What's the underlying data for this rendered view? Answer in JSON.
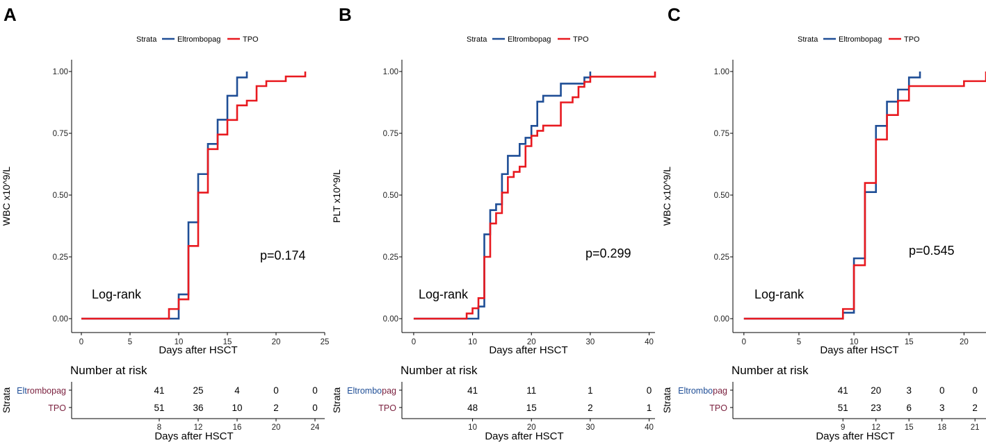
{
  "colors": {
    "eltrombopag": "#1f4e96",
    "tpo": "#e8191f",
    "axis": "#000000"
  },
  "chart_data": [
    {
      "type": "line",
      "step": true,
      "panel_label": "A",
      "legend": {
        "title": "Strata",
        "entries": [
          "Eltrombopag",
          "TPO"
        ],
        "placement": "top"
      },
      "xlabel": "Days after HSCT",
      "ylabel": "WBC x10^9/L",
      "xlim": [
        -1,
        25
      ],
      "ylim": [
        0,
        1
      ],
      "xticks": [
        0,
        5,
        10,
        15,
        20,
        25
      ],
      "yticks": [
        "0.00",
        "0.25",
        "0.50",
        "0.75",
        "1.00"
      ],
      "annotations": {
        "method": "Log-rank",
        "pvalue": "p=0.174"
      },
      "series": [
        {
          "name": "Eltrombopag",
          "x": [
            0,
            10,
            11,
            12,
            13,
            14,
            15,
            16,
            17
          ],
          "y": [
            0,
            0.098,
            0.39,
            0.585,
            0.707,
            0.805,
            0.902,
            0.976,
            1.0
          ]
        },
        {
          "name": "TPO",
          "x": [
            0,
            9,
            10,
            11,
            12,
            13,
            14,
            15,
            16,
            17,
            18,
            19,
            21,
            23
          ],
          "y": [
            0,
            0.039,
            0.078,
            0.294,
            0.51,
            0.686,
            0.745,
            0.804,
            0.863,
            0.882,
            0.941,
            0.961,
            0.98,
            1.0
          ]
        }
      ],
      "risk_table": {
        "title": "Number at risk",
        "strata_label": "Strata",
        "xlabel": "Days after HSCT",
        "xlim": [
          -1,
          25
        ],
        "times": [
          8,
          12,
          16,
          20,
          24
        ],
        "rows": [
          {
            "name": "Elt",
            "name_rest": "rombopag",
            "values": [
              "41",
              "25",
              "4",
              "0",
              "0"
            ]
          },
          {
            "name": "TPO",
            "name_rest": "",
            "values": [
              "51",
              "36",
              "10",
              "2",
              "0"
            ]
          }
        ]
      }
    },
    {
      "type": "line",
      "step": true,
      "panel_label": "B",
      "legend": {
        "title": "Strata",
        "entries": [
          "Eltrombopag",
          "TPO"
        ],
        "placement": "top"
      },
      "xlabel": "Days after HSCT",
      "ylabel": "PLT x10^9/L",
      "xlim": [
        -2,
        41
      ],
      "ylim": [
        0,
        1
      ],
      "xticks": [
        0,
        10,
        20,
        30,
        40
      ],
      "yticks": [
        "0.00",
        "0.25",
        "0.50",
        "0.75",
        "1.00"
      ],
      "annotations": {
        "method": "Log-rank",
        "pvalue": "p=0.299"
      },
      "series": [
        {
          "name": "Eltrombopag",
          "x": [
            0,
            11,
            12,
            13,
            14,
            15,
            16,
            17,
            18,
            19,
            20,
            21,
            22,
            25,
            29,
            30
          ],
          "y": [
            0,
            0.049,
            0.341,
            0.439,
            0.463,
            0.585,
            0.659,
            0.659,
            0.707,
            0.732,
            0.78,
            0.878,
            0.902,
            0.951,
            0.976,
            1.0
          ]
        },
        {
          "name": "TPO",
          "x": [
            0,
            9,
            10,
            11,
            12,
            13,
            14,
            15,
            16,
            17,
            18,
            19,
            20,
            21,
            22,
            25,
            27,
            28,
            29,
            30,
            41
          ],
          "y": [
            0,
            0.021,
            0.042,
            0.083,
            0.25,
            0.385,
            0.427,
            0.51,
            0.573,
            0.594,
            0.615,
            0.698,
            0.74,
            0.76,
            0.781,
            0.875,
            0.896,
            0.938,
            0.958,
            0.979,
            1.0
          ]
        }
      ],
      "risk_table": {
        "title": "Number at risk",
        "strata_label": "Strata",
        "xlabel": "Days after HSCT",
        "xlim": [
          -2,
          41
        ],
        "times": [
          10,
          20,
          30,
          40
        ],
        "rows": [
          {
            "name": "Eltrombo",
            "name_rest": "pag",
            "values": [
              "41",
              "11",
              "1",
              "0"
            ]
          },
          {
            "name": "TPO",
            "name_rest": "",
            "values": [
              "48",
              "15",
              "2",
              "1"
            ]
          }
        ]
      }
    },
    {
      "type": "line",
      "step": true,
      "panel_label": "C",
      "legend": {
        "title": "Strata",
        "entries": [
          "Eltrombopag",
          "TPO"
        ],
        "placement": "top"
      },
      "xlabel": "Days after HSCT",
      "ylabel": "WBC x10^9/L",
      "xlim": [
        -1,
        22
      ],
      "ylim": [
        0,
        1
      ],
      "xticks": [
        0,
        5,
        10,
        15,
        20
      ],
      "yticks": [
        "0.00",
        "0.25",
        "0.50",
        "0.75",
        "1.00"
      ],
      "annotations": {
        "method": "Log-rank",
        "pvalue": "p=0.545"
      },
      "series": [
        {
          "name": "Eltrombopag",
          "x": [
            0,
            9,
            10,
            11,
            12,
            13,
            14,
            15,
            16
          ],
          "y": [
            0,
            0.024,
            0.244,
            0.512,
            0.78,
            0.878,
            0.927,
            0.976,
            1.0
          ]
        },
        {
          "name": "TPO",
          "x": [
            0,
            9,
            10,
            11,
            12,
            13,
            14,
            15,
            20,
            22
          ],
          "y": [
            0,
            0.039,
            0.216,
            0.549,
            0.725,
            0.824,
            0.882,
            0.941,
            0.961,
            1.0
          ]
        }
      ],
      "risk_table": {
        "title": "Number at risk",
        "strata_label": "Strata",
        "xlabel": "Days after HSCT",
        "xlim": [
          -1,
          22
        ],
        "times": [
          9,
          12,
          15,
          18,
          21
        ],
        "rows": [
          {
            "name": "Eltrombo",
            "name_rest": "pag",
            "values": [
              "41",
              "20",
              "3",
              "0",
              "0"
            ]
          },
          {
            "name": "TPO",
            "name_rest": "",
            "values": [
              "51",
              "23",
              "6",
              "3",
              "2"
            ]
          }
        ]
      }
    }
  ]
}
